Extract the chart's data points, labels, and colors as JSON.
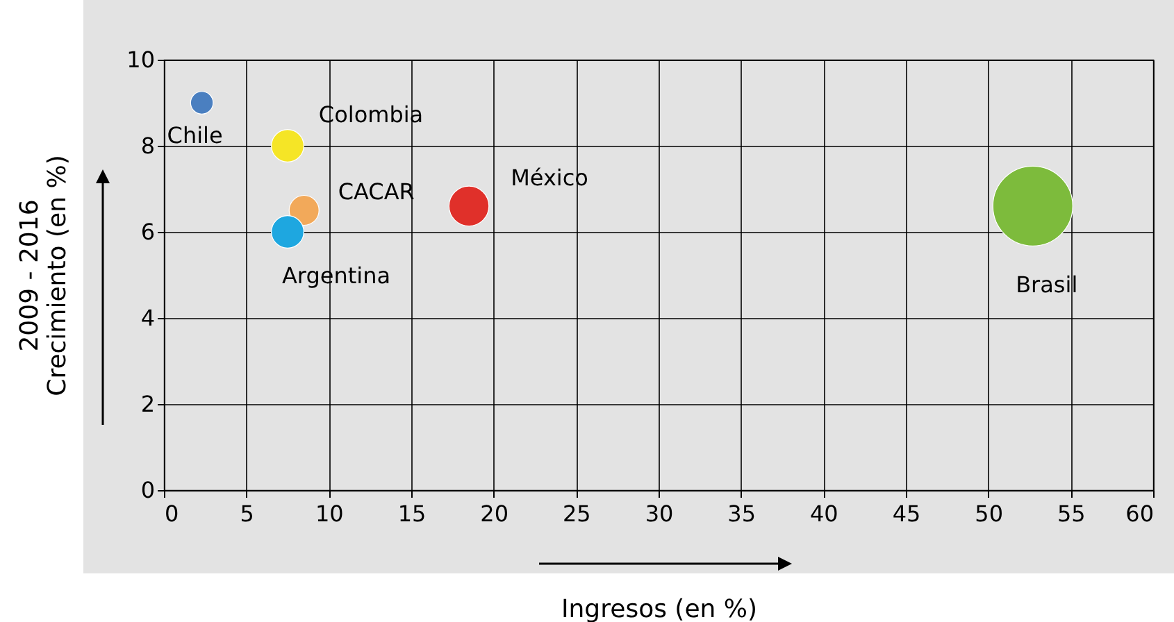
{
  "chart_data": {
    "type": "bubble",
    "xlabel": "Ingresos (en %)",
    "ylabel": "2009 - 2016\nCrecimiento (en %)",
    "xlim": [
      0,
      60
    ],
    "xticks": [
      0,
      5,
      10,
      15,
      20,
      25,
      30,
      35,
      40,
      45,
      50,
      55,
      60
    ],
    "ylim": [
      0,
      10
    ],
    "yticks": [
      0,
      2,
      4,
      6,
      8,
      10
    ],
    "grid": true,
    "series": [
      {
        "name": "Chile",
        "color": "#4a7fc0",
        "x": [
          2.3
        ],
        "values": [
          9
        ],
        "sizes": [
          0.08
        ]
      },
      {
        "name": "Colombia",
        "color": "#f5e526",
        "x": [
          7.5
        ],
        "values": [
          8
        ],
        "sizes": [
          0.165
        ]
      },
      {
        "name": "CACAR",
        "color": "#f2a95a",
        "x": [
          8.5
        ],
        "values": [
          6.5
        ],
        "sizes": [
          0.14
        ]
      },
      {
        "name": "Argentina",
        "color": "#1ea7e0",
        "x": [
          7.5
        ],
        "values": [
          6
        ],
        "sizes": [
          0.165
        ]
      },
      {
        "name": "México",
        "color": "#e0302a",
        "x": [
          18.5
        ],
        "values": [
          6.6
        ],
        "sizes": [
          0.25
        ]
      },
      {
        "name": "Brasil",
        "color": "#7dbb3c",
        "x": [
          52.7
        ],
        "values": [
          6.6
        ],
        "sizes": [
          1
        ]
      }
    ]
  }
}
